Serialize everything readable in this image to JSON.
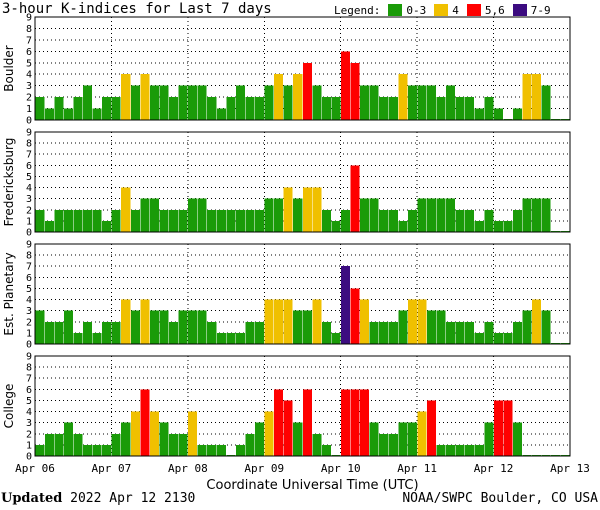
{
  "title": "3-hour K-indices for Last 7 days",
  "legend": {
    "label": "Legend:",
    "items": [
      {
        "label": "0-3",
        "color": "#1a9b08"
      },
      {
        "label": "4",
        "color": "#f0c000"
      },
      {
        "label": "5,6",
        "color": "#ff0000"
      },
      {
        "label": "7-9",
        "color": "#3c0c80"
      }
    ]
  },
  "footer": {
    "updated_label": "Updated",
    "updated_value": "2022 Apr 12 2130",
    "source": "NOAA/SWPC Boulder, CO USA"
  },
  "chart_data": {
    "type": "bar",
    "xlabel": "Coordinate Universal Time (UTC)",
    "x_ticks": [
      "Apr 06",
      "Apr 07",
      "Apr 08",
      "Apr 09",
      "Apr 10",
      "Apr 11",
      "Apr 12",
      "Apr 13"
    ],
    "ylim": [
      0,
      9
    ],
    "y_ticks": [
      "0",
      "1",
      "2",
      "3",
      "4",
      "5",
      "6",
      "7",
      "8",
      "9"
    ],
    "bars_per_day": 8,
    "grid": "dotted",
    "series": [
      {
        "name": "Boulder",
        "values": [
          2,
          1,
          2,
          1,
          2,
          3,
          1,
          2,
          2,
          4,
          3,
          4,
          3,
          3,
          2,
          3,
          3,
          3,
          2,
          1,
          2,
          3,
          2,
          2,
          3,
          4,
          3,
          4,
          5,
          3,
          2,
          2,
          6,
          5,
          3,
          3,
          2,
          2,
          4,
          3,
          3,
          3,
          2,
          3,
          2,
          2,
          1,
          2,
          1,
          0,
          1,
          4,
          4,
          3,
          0,
          0
        ]
      },
      {
        "name": "Fredericksburg",
        "values": [
          2,
          1,
          2,
          2,
          2,
          2,
          2,
          1,
          2,
          4,
          2,
          3,
          3,
          2,
          2,
          2,
          3,
          3,
          2,
          2,
          2,
          2,
          2,
          2,
          3,
          3,
          4,
          3,
          4,
          4,
          2,
          1,
          2,
          6,
          3,
          3,
          2,
          2,
          1,
          2,
          3,
          3,
          3,
          3,
          2,
          2,
          1,
          2,
          1,
          1,
          2,
          3,
          3,
          3,
          0,
          0
        ]
      },
      {
        "name": "Est. Planetary",
        "values": [
          3,
          2,
          2,
          3,
          1,
          2,
          1,
          2,
          2,
          4,
          3,
          4,
          3,
          3,
          2,
          3,
          3,
          3,
          2,
          1,
          1,
          1,
          2,
          2,
          4,
          4,
          4,
          3,
          3,
          4,
          2,
          1,
          7,
          5,
          4,
          2,
          2,
          2,
          3,
          4,
          4,
          3,
          3,
          2,
          2,
          2,
          1,
          2,
          1,
          1,
          2,
          3,
          4,
          3,
          0,
          0
        ]
      },
      {
        "name": "College",
        "values": [
          1,
          2,
          2,
          3,
          2,
          1,
          1,
          1,
          2,
          3,
          4,
          6,
          4,
          3,
          2,
          2,
          4,
          1,
          1,
          1,
          0,
          1,
          2,
          3,
          4,
          6,
          5,
          3,
          6,
          2,
          1,
          0,
          6,
          6,
          6,
          3,
          2,
          2,
          3,
          3,
          4,
          5,
          1,
          1,
          1,
          1,
          1,
          3,
          5,
          5,
          3,
          0,
          0,
          0,
          0,
          0
        ]
      }
    ]
  }
}
